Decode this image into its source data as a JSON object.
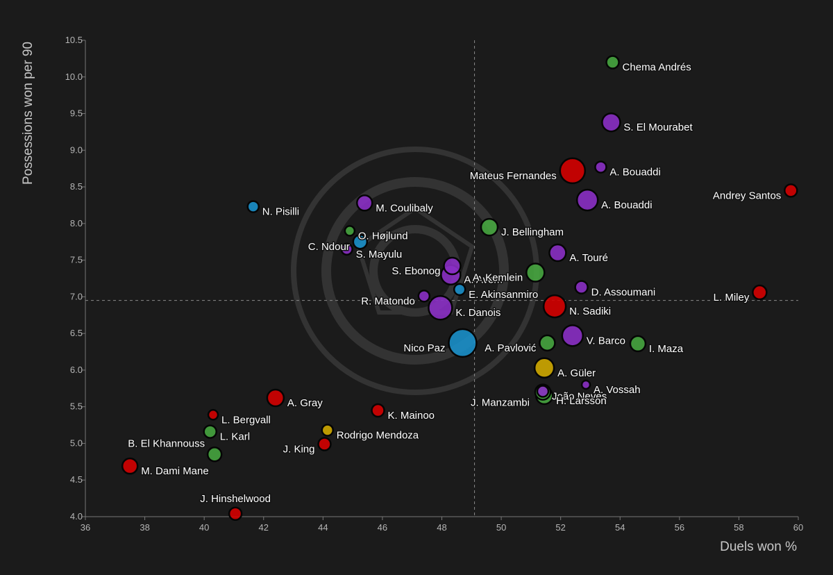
{
  "chart_data": {
    "type": "scatter",
    "xlabel": "Duels won %",
    "ylabel": "Possessions won per 90",
    "xlim": [
      36,
      60
    ],
    "ylim": [
      4.0,
      10.5
    ],
    "x_ticks": [
      "36",
      "38",
      "40",
      "42",
      "44",
      "46",
      "48",
      "50",
      "52",
      "54",
      "56",
      "58",
      "60"
    ],
    "y_ticks": [
      "4.0",
      "4.5",
      "5.0",
      "5.5",
      "6.0",
      "6.5",
      "7.0",
      "7.5",
      "8.0",
      "8.5",
      "9.0",
      "9.5",
      "10.0",
      "10.5"
    ],
    "reference_lines": {
      "x": 49.1,
      "y": 6.95
    },
    "grid": false,
    "colors": {
      "red": "#d40000",
      "purple": "#8a2fc4",
      "green": "#46a53f",
      "blue": "#1a8fc9",
      "yellow": "#cfa800"
    },
    "points": [
      {
        "name": "Chema Andrés",
        "x": 53.75,
        "y": 10.2,
        "size": 9,
        "color": "green",
        "label": "right"
      },
      {
        "name": "S. El Mourabet",
        "x": 53.7,
        "y": 9.38,
        "size": 13,
        "color": "purple",
        "label": "right"
      },
      {
        "name": "A. Bouaddi",
        "x": 53.35,
        "y": 8.77,
        "size": 8,
        "color": "purple",
        "label": "right"
      },
      {
        "name": "Mateus Fernandes",
        "x": 52.4,
        "y": 8.72,
        "size": 18,
        "color": "red",
        "label": "left"
      },
      {
        "name": "A. Bouaddi",
        "x": 52.9,
        "y": 8.32,
        "size": 15,
        "color": "purple",
        "label": "right"
      },
      {
        "name": "Andrey Santos",
        "x": 59.75,
        "y": 8.45,
        "size": 9,
        "color": "red",
        "label": "left"
      },
      {
        "name": "N. Pisilli",
        "x": 41.65,
        "y": 8.23,
        "size": 8,
        "color": "blue",
        "label": "right"
      },
      {
        "name": "M. Coulibaly",
        "x": 45.4,
        "y": 8.28,
        "size": 11,
        "color": "purple",
        "label": "right"
      },
      {
        "name": "J. Bellingham",
        "x": 49.6,
        "y": 7.95,
        "size": 12,
        "color": "green",
        "label": "right"
      },
      {
        "name": "O. Højlund",
        "x": 44.9,
        "y": 7.9,
        "size": 7,
        "color": "green",
        "label": "right"
      },
      {
        "name": "C. Ndour",
        "x": 45.25,
        "y": 7.75,
        "size": 10,
        "color": "blue",
        "label": "left"
      },
      {
        "name": "S. Mayulu",
        "x": 44.8,
        "y": 7.65,
        "size": 8,
        "color": "purple",
        "label": "right"
      },
      {
        "name": "A. Touré",
        "x": 51.9,
        "y": 7.6,
        "size": 12,
        "color": "purple",
        "label": "right"
      },
      {
        "name": "S. Ebonog",
        "x": 48.35,
        "y": 7.42,
        "size": 12,
        "color": "purple",
        "label": "left"
      },
      {
        "name": "A. Avom",
        "x": 48.3,
        "y": 7.3,
        "size": 14,
        "color": "purple",
        "label": "right"
      },
      {
        "name": "A. Kemlein",
        "x": 51.15,
        "y": 7.33,
        "size": 13,
        "color": "green",
        "label": "left"
      },
      {
        "name": "E. Akinsanmiro",
        "x": 48.6,
        "y": 7.1,
        "size": 8,
        "color": "blue",
        "label": "right"
      },
      {
        "name": "D. Assoumani",
        "x": 52.7,
        "y": 7.13,
        "size": 9,
        "color": "purple",
        "label": "right"
      },
      {
        "name": "L. Miley",
        "x": 58.7,
        "y": 7.06,
        "size": 10,
        "color": "red",
        "label": "left"
      },
      {
        "name": "R. Matondo",
        "x": 47.4,
        "y": 7.01,
        "size": 8,
        "color": "purple",
        "label": "left"
      },
      {
        "name": "K. Danois",
        "x": 47.95,
        "y": 6.85,
        "size": 17,
        "color": "purple",
        "label": "right"
      },
      {
        "name": "N. Sadiki",
        "x": 51.8,
        "y": 6.87,
        "size": 16,
        "color": "red",
        "label": "right"
      },
      {
        "name": "V. Barco",
        "x": 52.4,
        "y": 6.47,
        "size": 15,
        "color": "purple",
        "label": "right"
      },
      {
        "name": "Nico Paz",
        "x": 48.7,
        "y": 6.37,
        "size": 20,
        "color": "blue",
        "label": "left"
      },
      {
        "name": "A. Pavlović",
        "x": 51.55,
        "y": 6.37,
        "size": 11,
        "color": "green",
        "label": "left"
      },
      {
        "name": "I. Maza",
        "x": 54.6,
        "y": 6.36,
        "size": 11,
        "color": "green",
        "label": "right"
      },
      {
        "name": "A. Güler",
        "x": 51.45,
        "y": 6.03,
        "size": 14,
        "color": "yellow",
        "label": "right"
      },
      {
        "name": "A. Vossah",
        "x": 52.85,
        "y": 5.8,
        "size": 6,
        "color": "purple",
        "label": "right"
      },
      {
        "name": "João Neves",
        "x": 51.4,
        "y": 5.71,
        "size": 8,
        "color": "purple",
        "label": "right"
      },
      {
        "name": "H. Larsson",
        "x": 51.45,
        "y": 5.65,
        "size": 12,
        "color": "green",
        "label": "right"
      },
      {
        "name": "J. Manzambi",
        "x": 51.4,
        "y": 5.7,
        "size": 11,
        "color": "green",
        "label": "left-below"
      },
      {
        "name": "A. Gray",
        "x": 42.4,
        "y": 5.62,
        "size": 12,
        "color": "red",
        "label": "right"
      },
      {
        "name": "K. Mainoo",
        "x": 45.85,
        "y": 5.45,
        "size": 9,
        "color": "red",
        "label": "right"
      },
      {
        "name": "L. Bergvall",
        "x": 40.3,
        "y": 5.39,
        "size": 7,
        "color": "red",
        "label": "right"
      },
      {
        "name": "L. Karl",
        "x": 40.2,
        "y": 5.16,
        "size": 9,
        "color": "green",
        "label": "right"
      },
      {
        "name": "Rodrigo Mendoza",
        "x": 44.15,
        "y": 5.18,
        "size": 8,
        "color": "yellow",
        "label": "right"
      },
      {
        "name": "B. El Khannouss",
        "x": 40.35,
        "y": 4.85,
        "size": 10,
        "color": "green",
        "label": "left-above"
      },
      {
        "name": "J. King",
        "x": 44.05,
        "y": 4.99,
        "size": 9,
        "color": "red",
        "label": "left"
      },
      {
        "name": "M. Dami Mane",
        "x": 37.5,
        "y": 4.69,
        "size": 11,
        "color": "red",
        "label": "right"
      },
      {
        "name": "J. Hinshelwood",
        "x": 41.05,
        "y": 4.04,
        "size": 9,
        "color": "red",
        "label": "above"
      }
    ]
  }
}
